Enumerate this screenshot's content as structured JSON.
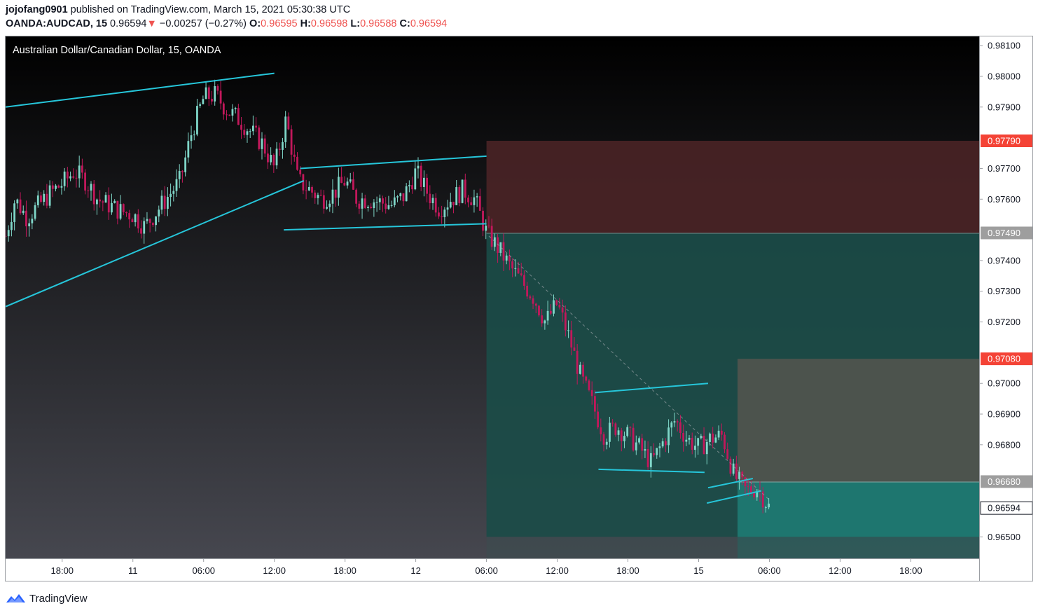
{
  "header": {
    "publisher": "jojofang0901",
    "published_on": "published on TradingView.com, March 15, 2021 05:30:38 UTC",
    "symbol": "OANDA:AUDCAD, 15",
    "last": "0.96594",
    "arrow": "▼",
    "change": "−0.00257 (−0.27%)",
    "o_label": "O:",
    "o_value": "0.96595",
    "h_label": "H:",
    "h_value": "0.96598",
    "l_label": "L:",
    "l_value": "0.96588",
    "c_label": "C:",
    "c_value": "0.96594"
  },
  "chart_data": {
    "type": "candlestick",
    "title": "Australian Dollar/Canadian Dollar, 15, OANDA",
    "ylim": [
      0.9643,
      0.9813
    ],
    "y_ticks": [
      "0.98100",
      "0.98000",
      "0.97900",
      "0.97700",
      "0.97600",
      "0.97400",
      "0.97300",
      "0.97200",
      "0.97000",
      "0.96900",
      "0.96800",
      "0.96500"
    ],
    "y_tick_values": [
      0.981,
      0.98,
      0.979,
      0.977,
      0.976,
      0.974,
      0.973,
      0.972,
      0.97,
      0.969,
      0.968,
      0.965
    ],
    "x_ticks": [
      "18:00",
      "11",
      "06:00",
      "12:00",
      "18:00",
      "12",
      "06:00",
      "12:00",
      "18:00",
      "15",
      "06:00",
      "12:00",
      "18:00"
    ],
    "x_tick_hours": [
      18,
      24,
      30,
      36,
      42,
      48,
      54,
      60,
      66,
      72,
      78,
      84,
      90
    ],
    "x_range_hours": [
      13.2,
      95.8
    ],
    "price_labels": [
      {
        "text": "0.97790",
        "value": 0.9779,
        "style": "red"
      },
      {
        "text": "0.97490",
        "value": 0.9749,
        "style": "gray"
      },
      {
        "text": "0.97080",
        "value": 0.9708,
        "style": "red"
      },
      {
        "text": "0.96680",
        "value": 0.9668,
        "style": "gray"
      },
      {
        "text": "0.96594",
        "value": 0.96594,
        "style": "white"
      }
    ],
    "series": [
      {
        "name": "AUDCAD",
        "path": [
          [
            13.2,
            0.9748
          ],
          [
            14.0,
            0.976
          ],
          [
            15.0,
            0.9754
          ],
          [
            16.0,
            0.9758
          ],
          [
            17.0,
            0.9762
          ],
          [
            18.0,
            0.9765
          ],
          [
            19.0,
            0.9769
          ],
          [
            20.0,
            0.9766
          ],
          [
            21.0,
            0.976
          ],
          [
            22.0,
            0.9758
          ],
          [
            23.0,
            0.9756
          ],
          [
            24.0,
            0.9755
          ],
          [
            25.0,
            0.9751
          ],
          [
            26.0,
            0.9756
          ],
          [
            27.0,
            0.9761
          ],
          [
            28.0,
            0.9766
          ],
          [
            29.0,
            0.9782
          ],
          [
            30.0,
            0.9793
          ],
          [
            31.0,
            0.9794
          ],
          [
            32.0,
            0.9789
          ],
          [
            33.0,
            0.9786
          ],
          [
            34.0,
            0.9782
          ],
          [
            35.0,
            0.9778
          ],
          [
            36.0,
            0.977
          ],
          [
            37.0,
            0.9786
          ],
          [
            38.0,
            0.9766
          ],
          [
            39.0,
            0.9763
          ],
          [
            40.0,
            0.976
          ],
          [
            41.0,
            0.9762
          ],
          [
            42.0,
            0.9766
          ],
          [
            43.0,
            0.976
          ],
          [
            44.0,
            0.976
          ],
          [
            45.0,
            0.9759
          ],
          [
            46.0,
            0.9758
          ],
          [
            47.0,
            0.9761
          ],
          [
            48.0,
            0.9769
          ],
          [
            49.0,
            0.9762
          ],
          [
            50.0,
            0.9757
          ],
          [
            51.0,
            0.976
          ],
          [
            52.0,
            0.9763
          ],
          [
            53.0,
            0.976
          ],
          [
            54.0,
            0.9749
          ],
          [
            55.0,
            0.9744
          ],
          [
            56.0,
            0.9738
          ],
          [
            57.0,
            0.9733
          ],
          [
            58.0,
            0.9728
          ],
          [
            59.0,
            0.972
          ],
          [
            60.0,
            0.9726
          ],
          [
            61.0,
            0.9715
          ],
          [
            62.0,
            0.9702
          ],
          [
            63.0,
            0.9693
          ],
          [
            64.0,
            0.9683
          ],
          [
            65.0,
            0.9686
          ],
          [
            66.0,
            0.9683
          ],
          [
            67.0,
            0.9679
          ],
          [
            68.0,
            0.9674
          ],
          [
            69.0,
            0.9681
          ],
          [
            70.0,
            0.9688
          ],
          [
            71.0,
            0.9682
          ],
          [
            72.0,
            0.9679
          ],
          [
            73.0,
            0.9682
          ],
          [
            74.0,
            0.9683
          ],
          [
            75.0,
            0.967
          ],
          [
            76.0,
            0.9665
          ],
          [
            77.0,
            0.9666
          ],
          [
            78.0,
            0.96594
          ]
        ]
      }
    ],
    "annotations": {
      "channels": [
        [
          [
            13.2,
            0.979
          ],
          [
            36.0,
            0.9801
          ]
        ],
        [
          [
            13.2,
            0.9725
          ],
          [
            38.5,
            0.9766
          ]
        ],
        [
          [
            38.2,
            0.977
          ],
          [
            54.0,
            0.9774
          ]
        ],
        [
          [
            36.8,
            0.975
          ],
          [
            54.0,
            0.9752
          ]
        ],
        [
          [
            63.2,
            0.9697
          ],
          [
            72.8,
            0.97
          ]
        ],
        [
          [
            63.5,
            0.9672
          ],
          [
            72.5,
            0.9671
          ]
        ],
        [
          [
            72.8,
            0.9666
          ],
          [
            76.6,
            0.9669
          ]
        ],
        [
          [
            72.7,
            0.9661
          ],
          [
            77.3,
            0.9665
          ]
        ]
      ],
      "dashed": [
        [
          [
            54.2,
            0.9748
          ],
          [
            78.0,
            0.9662
          ]
        ]
      ],
      "positions": [
        {
          "entry": 0.9749,
          "stop": 0.9779,
          "target": 0.965,
          "current": 0.96594,
          "start": 54.0,
          "end": 95.8
        },
        {
          "entry": 0.9668,
          "stop": 0.9708,
          "target": 0.965,
          "current": 0.96594,
          "start": 75.3,
          "end": 95.8
        }
      ]
    }
  },
  "footer": {
    "brand": "TradingView"
  },
  "colors": {
    "up": "#26a69a",
    "down": "#ef5350",
    "trend_line": "#26c6da",
    "stop_zone": "#4a2326",
    "target_zone": "#1b4d48"
  }
}
